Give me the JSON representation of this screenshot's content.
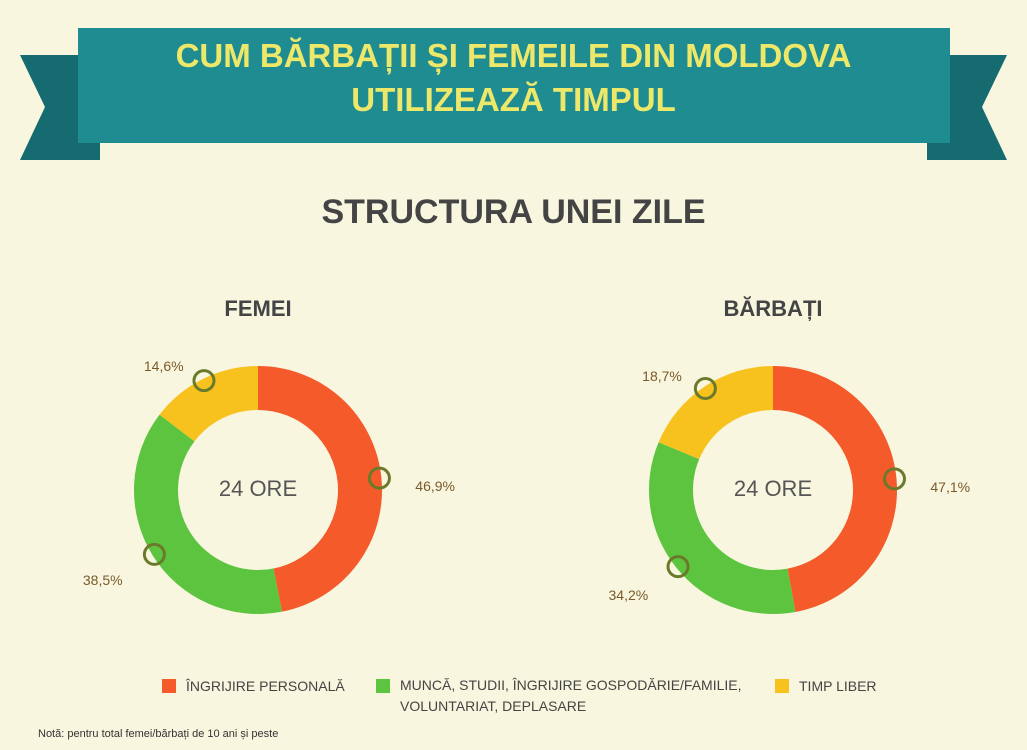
{
  "header": {
    "title_lines": [
      "CUM BĂRBAȚII ȘI FEMEILE DIN MOLDOVA",
      "UTILIZEAZĂ TIMPUL"
    ],
    "subtitle": "STRUCTURA UNEI ZILE"
  },
  "chart_data": [
    {
      "type": "pie",
      "title": "FEMEI",
      "center_label": "24 ORE",
      "categories": [
        "ÎNGRIJIRE PERSONALĂ",
        "MUNCĂ, STUDII, ÎNGRIJIRE GOSPODĂRIE/FAMILIE, VOLUNTARIAT, DEPLASARE",
        "TIMP LIBER"
      ],
      "values": [
        46.9,
        38.5,
        14.6
      ],
      "value_labels": [
        "46,9%",
        "38,5%",
        "14,6%"
      ],
      "colors": [
        "#f45a2a",
        "#5cc43e",
        "#f8c21e"
      ]
    },
    {
      "type": "pie",
      "title": "BĂRBAȚI",
      "center_label": "24 ORE",
      "categories": [
        "ÎNGRIJIRE PERSONALĂ",
        "MUNCĂ, STUDII, ÎNGRIJIRE GOSPODĂRIE/FAMILIE, VOLUNTARIAT, DEPLASARE",
        "TIMP LIBER"
      ],
      "values": [
        47.1,
        34.2,
        18.7
      ],
      "value_labels": [
        "47,1%",
        "34,2%",
        "18,7%"
      ],
      "colors": [
        "#f45a2a",
        "#5cc43e",
        "#f8c21e"
      ]
    }
  ],
  "note": "Notă: pentru total femei/bărbați de 10 ani și peste"
}
